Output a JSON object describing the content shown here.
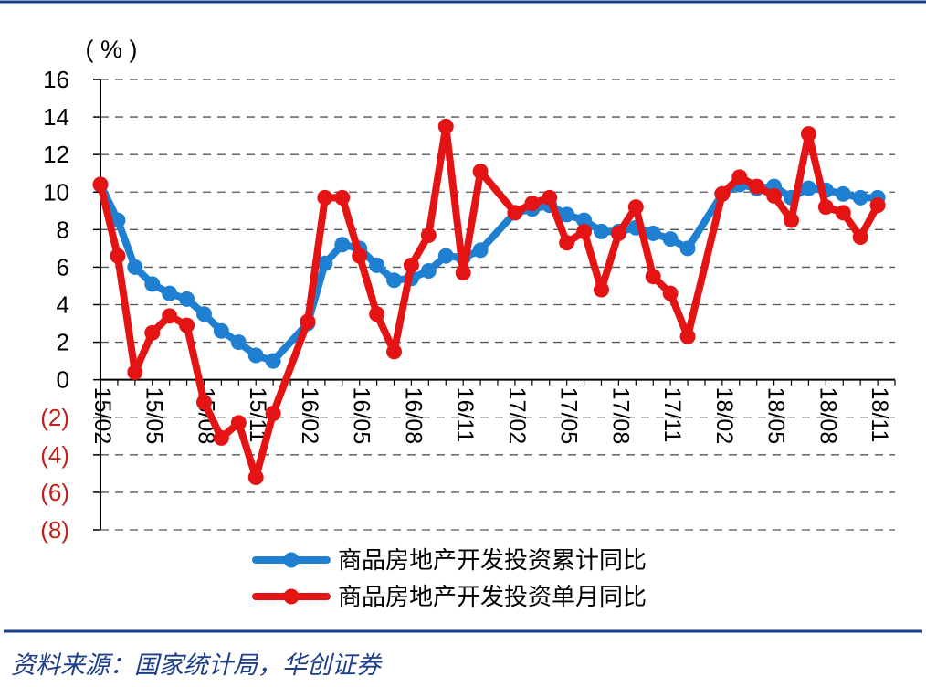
{
  "chart_data": {
    "type": "line",
    "unit_label": "( % )",
    "ylim": [
      -8,
      16
    ],
    "y_ticks": [
      {
        "v": 16,
        "label": "16"
      },
      {
        "v": 14,
        "label": "14"
      },
      {
        "v": 12,
        "label": "12"
      },
      {
        "v": 10,
        "label": "10"
      },
      {
        "v": 8,
        "label": "8"
      },
      {
        "v": 6,
        "label": "6"
      },
      {
        "v": 4,
        "label": "4"
      },
      {
        "v": 2,
        "label": "2"
      },
      {
        "v": 0,
        "label": "0"
      },
      {
        "v": -2,
        "label": "(2)"
      },
      {
        "v": -4,
        "label": "(4)"
      },
      {
        "v": -6,
        "label": "(6)"
      },
      {
        "v": -8,
        "label": "(8)"
      }
    ],
    "x_ticks": [
      {
        "i": 0,
        "label": "15/02"
      },
      {
        "i": 3,
        "label": "15/05"
      },
      {
        "i": 6,
        "label": "15/08"
      },
      {
        "i": 9,
        "label": "15/11"
      },
      {
        "i": 12,
        "label": "16/02"
      },
      {
        "i": 15,
        "label": "16/05"
      },
      {
        "i": 18,
        "label": "16/08"
      },
      {
        "i": 21,
        "label": "16/11"
      },
      {
        "i": 24,
        "label": "17/02"
      },
      {
        "i": 27,
        "label": "17/05"
      },
      {
        "i": 30,
        "label": "17/08"
      },
      {
        "i": 33,
        "label": "17/11"
      },
      {
        "i": 36,
        "label": "18/02"
      },
      {
        "i": 39,
        "label": "18/05"
      },
      {
        "i": 42,
        "label": "18/08"
      },
      {
        "i": 45,
        "label": "18/11"
      }
    ],
    "grid": "horizontal dashed",
    "legend_position": "bottom",
    "series": [
      {
        "name": "商品房地产开发投资累计同比",
        "color": "#1f7fd1",
        "values": [
          10.4,
          8.5,
          6.0,
          5.1,
          4.6,
          4.3,
          3.5,
          2.6,
          2.0,
          1.3,
          1.0,
          null,
          3.0,
          6.2,
          7.2,
          7.0,
          6.1,
          5.3,
          5.4,
          5.8,
          6.6,
          6.5,
          6.9,
          null,
          8.9,
          9.1,
          9.3,
          8.8,
          8.5,
          7.9,
          7.9,
          8.1,
          7.8,
          7.5,
          7.0,
          null,
          9.9,
          10.4,
          10.2,
          10.3,
          9.7,
          10.2,
          10.1,
          9.9,
          9.7,
          9.7
        ]
      },
      {
        "name": "商品房地产开发投资单月同比",
        "color": "#e41414",
        "values": [
          10.4,
          6.6,
          0.4,
          2.5,
          3.4,
          2.9,
          -1.2,
          -3.1,
          -2.3,
          -5.2,
          -1.8,
          null,
          3.1,
          9.7,
          9.7,
          6.6,
          3.5,
          1.5,
          6.1,
          7.7,
          13.5,
          5.7,
          11.1,
          null,
          8.9,
          9.4,
          9.7,
          7.3,
          7.9,
          4.8,
          7.8,
          9.2,
          5.5,
          4.6,
          2.3,
          null,
          9.9,
          10.8,
          10.3,
          9.8,
          8.5,
          13.1,
          9.2,
          8.9,
          7.6,
          9.3
        ]
      }
    ]
  },
  "source_text": "资料来源：国家统计局，华创证券"
}
